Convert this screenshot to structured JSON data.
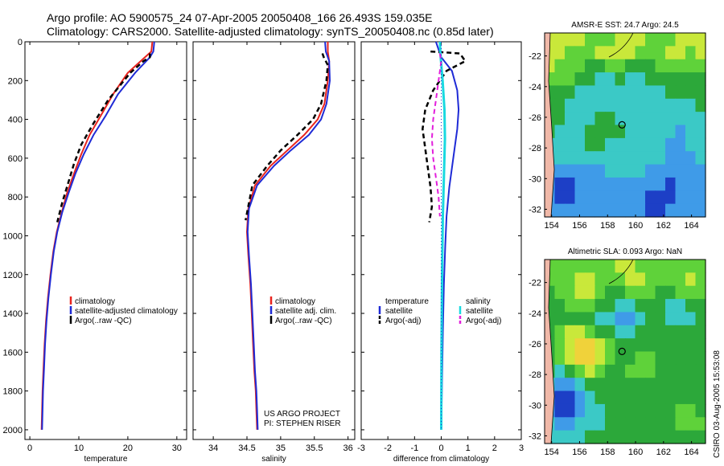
{
  "header": {
    "line1": "Argo profile: AO 5900575_24 07-Apr-2005 20050408_166 26.493S 159.035E",
    "line2": "Climatology: CARS2000. Satellite-adjusted climatology: synTS_20050408.nc (0.85d later)"
  },
  "credit": {
    "project": "US ARGO PROJECT",
    "pi": "PI: STEPHEN RISER",
    "stamp": "CSIRO 03-Aug-2005 15:53:08"
  },
  "colors": {
    "red": "#e8241e",
    "blue": "#1f2bd6",
    "black": "#000000",
    "cyan": "#19d9e0",
    "magenta": "#e21fdc"
  },
  "chart_data": [
    {
      "id": "temperature",
      "type": "line",
      "xlabel": "temperature",
      "xlim": [
        -1,
        32
      ],
      "ylim": [
        0,
        2050
      ],
      "xticks": [
        "0",
        "10",
        "20",
        "30"
      ],
      "xtick_values": [
        0,
        10,
        20,
        30
      ],
      "yticks": [
        "0",
        "200",
        "400",
        "600",
        "800",
        "1000",
        "1200",
        "1400",
        "1600",
        "1800",
        "2000"
      ],
      "ytick_values": [
        0,
        200,
        400,
        600,
        800,
        1000,
        1200,
        1400,
        1600,
        1800,
        2000
      ],
      "legend": [
        "climatology",
        "satellite-adjusted climatology",
        "Argo(..raw -QC)"
      ],
      "series": [
        {
          "name": "climatology",
          "color": "red",
          "dash": "",
          "width": 2,
          "x": [
            25.0,
            24.8,
            23.5,
            20.0,
            17.0,
            14.5,
            12.2,
            10.5,
            9.0,
            7.6,
            6.5,
            5.5,
            4.8,
            4.2,
            3.7,
            3.3,
            3.0,
            2.8,
            2.6,
            2.5,
            2.4
          ],
          "y": [
            0,
            50,
            80,
            160,
            270,
            380,
            480,
            580,
            680,
            780,
            880,
            980,
            1080,
            1200,
            1320,
            1440,
            1560,
            1680,
            1800,
            1900,
            2000
          ]
        },
        {
          "name": "satellite-adjusted climatology",
          "color": "blue",
          "dash": "",
          "width": 2,
          "x": [
            25.4,
            25.2,
            24.5,
            21.5,
            18.0,
            15.5,
            13.0,
            11.0,
            9.3,
            7.9,
            6.6,
            5.6,
            4.9,
            4.3,
            3.8,
            3.4,
            3.1,
            2.9,
            2.7,
            2.6,
            2.5
          ],
          "y": [
            0,
            50,
            80,
            160,
            270,
            380,
            480,
            580,
            680,
            780,
            880,
            980,
            1080,
            1200,
            1320,
            1440,
            1560,
            1680,
            1800,
            1900,
            2000
          ]
        },
        {
          "name": "Argo(..raw -QC)",
          "color": "black",
          "dash": "6,4",
          "width": 2.5,
          "x": [
            24.5,
            24.5,
            23.2,
            20.5,
            16.0,
            13.0,
            10.5,
            9.0,
            7.8,
            6.6,
            5.6
          ],
          "y": [
            60,
            80,
            100,
            160,
            300,
            420,
            530,
            630,
            730,
            830,
            930
          ]
        }
      ]
    },
    {
      "id": "salinity",
      "type": "line",
      "xlabel": "salinity",
      "xlim": [
        33.7,
        36.1
      ],
      "ylim": [
        0,
        2050
      ],
      "xticks": [
        "34",
        "34.5",
        "35",
        "35.5",
        "36"
      ],
      "xtick_values": [
        34,
        34.5,
        35,
        35.5,
        36
      ],
      "legend": [
        "climatology",
        "satellite adj. clim.",
        "Argo(..raw -QC)"
      ],
      "series": [
        {
          "name": "climatology",
          "color": "red",
          "dash": "",
          "width": 2,
          "x": [
            35.7,
            35.7,
            35.72,
            35.7,
            35.65,
            35.55,
            35.35,
            35.1,
            34.85,
            34.62,
            34.52,
            34.5,
            34.52,
            34.55,
            34.57,
            34.59,
            34.61,
            34.63,
            34.64,
            34.65
          ],
          "y": [
            0,
            50,
            100,
            200,
            320,
            400,
            480,
            560,
            640,
            740,
            860,
            980,
            1100,
            1250,
            1400,
            1550,
            1700,
            1800,
            1900,
            2000
          ]
        },
        {
          "name": "satellite adj. clim.",
          "color": "blue",
          "dash": "",
          "width": 2,
          "x": [
            35.66,
            35.67,
            35.72,
            35.73,
            35.68,
            35.6,
            35.42,
            35.15,
            34.9,
            34.65,
            34.53,
            34.51,
            34.53,
            34.56,
            34.58,
            34.6,
            34.62,
            34.64,
            34.65,
            34.66
          ],
          "y": [
            0,
            50,
            100,
            200,
            320,
            400,
            480,
            560,
            640,
            740,
            860,
            980,
            1100,
            1250,
            1400,
            1550,
            1700,
            1800,
            1900,
            2000
          ]
        },
        {
          "name": "Argo(..raw -QC)",
          "color": "black",
          "dash": "6,4",
          "width": 2.5,
          "x": [
            35.62,
            35.64,
            35.7,
            35.68,
            35.6,
            35.48,
            35.25,
            35.0,
            34.8,
            34.58,
            34.48
          ],
          "y": [
            60,
            80,
            120,
            200,
            320,
            400,
            480,
            560,
            640,
            740,
            920
          ]
        }
      ]
    },
    {
      "id": "difference",
      "type": "line",
      "xlabel": "difference from climatology",
      "xlim": [
        -3,
        3
      ],
      "ylim": [
        0,
        2050
      ],
      "xticks": [
        "-3",
        "-2",
        "-1",
        "0",
        "1",
        "2",
        "3"
      ],
      "xtick_values": [
        -3,
        -2,
        -1,
        0,
        1,
        2,
        3
      ],
      "legend": [
        "temperature",
        "satellite",
        "Argo(-adj)",
        "salinity",
        "satellite",
        "Argo(-adj)"
      ],
      "series": [
        {
          "name": "temperature satellite",
          "color": "blue",
          "dash": "",
          "width": 2,
          "x": [
            -0.2,
            0.0,
            0.4,
            0.6,
            0.65,
            0.6,
            0.5,
            0.4,
            0.3,
            0.2,
            0.15,
            0.1,
            0.06,
            0.03,
            0.0
          ],
          "y": [
            0,
            80,
            150,
            250,
            350,
            450,
            550,
            650,
            750,
            900,
            1050,
            1250,
            1500,
            1750,
            2000
          ]
        },
        {
          "name": "temperature Argo(-adj)",
          "color": "black",
          "dash": "6,4",
          "width": 2.5,
          "x": [
            -0.4,
            0.7,
            0.9,
            0.2,
            -0.3,
            -0.6,
            -0.7,
            -0.6,
            -0.5,
            -0.4,
            -0.35,
            -0.45
          ],
          "y": [
            50,
            60,
            100,
            150,
            250,
            350,
            450,
            550,
            650,
            750,
            850,
            930
          ]
        },
        {
          "name": "salinity satellite",
          "color": "cyan",
          "dash": "",
          "width": 3,
          "x": [
            -0.05,
            -0.02,
            0.05,
            0.12,
            0.14,
            0.1,
            0.06,
            0.03,
            0.01,
            0.0
          ],
          "y": [
            0,
            80,
            200,
            350,
            500,
            700,
            900,
            1200,
            1600,
            2000
          ]
        },
        {
          "name": "salinity Argo(-adj)",
          "color": "magenta",
          "dash": "6,4",
          "width": 2,
          "x": [
            -0.05,
            0.0,
            -0.1,
            -0.2,
            -0.3,
            -0.35,
            -0.3,
            -0.2,
            -0.1,
            -0.05
          ],
          "y": [
            60,
            100,
            200,
            300,
            400,
            500,
            600,
            700,
            800,
            900
          ]
        },
        {
          "name": "zero line",
          "color": "blue",
          "dash": "1,3",
          "width": 1,
          "x": [
            0,
            0
          ],
          "y": [
            0,
            2000
          ]
        }
      ]
    },
    {
      "id": "sst_map",
      "type": "heatmap",
      "title": "AMSR-E SST: 24.7  Argo: 24.5",
      "xlim": [
        153.5,
        165
      ],
      "ylim": [
        -32.5,
        -20.5
      ],
      "xticks": [
        "154",
        "156",
        "158",
        "160",
        "162",
        "164"
      ],
      "xtick_values": [
        154,
        156,
        158,
        160,
        162,
        164
      ],
      "yticks": [
        "-22",
        "-24",
        "-26",
        "-28",
        "-30",
        "-32"
      ],
      "ytick_values": [
        -22,
        -24,
        -26,
        -28,
        -30,
        -32
      ],
      "marker": {
        "lon": 159.035,
        "lat": -26.493
      },
      "rows": [
        [
          5,
          5,
          5,
          5,
          4,
          4,
          4,
          5,
          5,
          5,
          4,
          4,
          4,
          5,
          5,
          5
        ],
        [
          5,
          5,
          4,
          4,
          4,
          5,
          5,
          5,
          5,
          4,
          4,
          4,
          5,
          5,
          4,
          5
        ],
        [
          5,
          4,
          4,
          4,
          3,
          3,
          4,
          4,
          3,
          3,
          3,
          4,
          4,
          4,
          4,
          4
        ],
        [
          4,
          4,
          4,
          3,
          3,
          2,
          2,
          3,
          2,
          2,
          3,
          3,
          3,
          3,
          3,
          3
        ],
        [
          3,
          3,
          3,
          2,
          2,
          2,
          2,
          2,
          2,
          2,
          2,
          2,
          3,
          3,
          3,
          3
        ],
        [
          3,
          3,
          2,
          2,
          2,
          2,
          2,
          2,
          2,
          2,
          2,
          2,
          2,
          2,
          2,
          3
        ],
        [
          3,
          3,
          2,
          2,
          2,
          3,
          3,
          2,
          2,
          2,
          2,
          2,
          2,
          2,
          2,
          2
        ],
        [
          3,
          2,
          2,
          2,
          3,
          3,
          3,
          3,
          2,
          2,
          2,
          2,
          2,
          1,
          2,
          2
        ],
        [
          2,
          2,
          2,
          2,
          3,
          3,
          2,
          2,
          2,
          2,
          2,
          2,
          1,
          1,
          2,
          2
        ],
        [
          2,
          2,
          2,
          2,
          2,
          2,
          2,
          2,
          2,
          2,
          2,
          2,
          1,
          1,
          1,
          2
        ],
        [
          1,
          1,
          1,
          1,
          1,
          1,
          2,
          2,
          2,
          2,
          1,
          1,
          1,
          1,
          1,
          1
        ],
        [
          1,
          0,
          0,
          1,
          1,
          1,
          1,
          1,
          1,
          1,
          1,
          1,
          0,
          1,
          1,
          1
        ],
        [
          1,
          0,
          0,
          1,
          1,
          1,
          1,
          1,
          1,
          1,
          0,
          0,
          0,
          1,
          1,
          1
        ],
        [
          1,
          1,
          1,
          1,
          1,
          1,
          1,
          1,
          1,
          1,
          0,
          0,
          1,
          1,
          1,
          1
        ]
      ]
    },
    {
      "id": "sla_map",
      "type": "heatmap",
      "title": "Altimetric SLA: 0.093  Argo: NaN",
      "xlim": [
        153.5,
        165
      ],
      "ylim": [
        -32.5,
        -20.5
      ],
      "xticks": [
        "154",
        "156",
        "158",
        "160",
        "162",
        "164"
      ],
      "xtick_values": [
        154,
        156,
        158,
        160,
        162,
        164
      ],
      "yticks": [
        "-22",
        "-24",
        "-26",
        "-28",
        "-30",
        "-32"
      ],
      "ytick_values": [
        -22,
        -24,
        -26,
        -28,
        -30,
        -32
      ],
      "marker": {
        "lon": 159.035,
        "lat": -26.493
      },
      "rows": [
        [
          4,
          4,
          4,
          4,
          4,
          4,
          4,
          5,
          5,
          4,
          4,
          4,
          4,
          4,
          4,
          4
        ],
        [
          4,
          4,
          4,
          5,
          5,
          4,
          4,
          4,
          5,
          5,
          4,
          4,
          4,
          4,
          5,
          4
        ],
        [
          3,
          4,
          4,
          5,
          5,
          4,
          3,
          3,
          4,
          4,
          4,
          3,
          3,
          4,
          4,
          4
        ],
        [
          3,
          3,
          4,
          4,
          4,
          3,
          3,
          2,
          2,
          3,
          3,
          3,
          2,
          2,
          3,
          3
        ],
        [
          3,
          3,
          3,
          3,
          3,
          2,
          2,
          1,
          1,
          2,
          3,
          3,
          2,
          2,
          2,
          3
        ],
        [
          3,
          4,
          5,
          5,
          4,
          3,
          3,
          2,
          2,
          3,
          3,
          3,
          3,
          3,
          3,
          3
        ],
        [
          3,
          4,
          5,
          6,
          6,
          5,
          4,
          3,
          3,
          3,
          3,
          3,
          3,
          3,
          3,
          3
        ],
        [
          3,
          4,
          5,
          6,
          6,
          5,
          4,
          3,
          3,
          4,
          4,
          3,
          3,
          3,
          3,
          3
        ],
        [
          3,
          2,
          3,
          4,
          5,
          4,
          3,
          3,
          4,
          4,
          4,
          3,
          3,
          3,
          3,
          3
        ],
        [
          2,
          1,
          1,
          2,
          3,
          3,
          3,
          3,
          3,
          3,
          3,
          3,
          3,
          3,
          3,
          3
        ],
        [
          1,
          0,
          0,
          1,
          2,
          3,
          3,
          3,
          3,
          3,
          3,
          3,
          3,
          3,
          3,
          3
        ],
        [
          1,
          0,
          0,
          1,
          2,
          2,
          3,
          3,
          3,
          3,
          3,
          3,
          3,
          4,
          4,
          3
        ],
        [
          2,
          1,
          1,
          2,
          2,
          2,
          3,
          3,
          3,
          3,
          3,
          3,
          3,
          4,
          4,
          4
        ],
        [
          2,
          2,
          2,
          2,
          3,
          3,
          3,
          3,
          3,
          3,
          3,
          3,
          3,
          3,
          3,
          3
        ]
      ]
    }
  ]
}
